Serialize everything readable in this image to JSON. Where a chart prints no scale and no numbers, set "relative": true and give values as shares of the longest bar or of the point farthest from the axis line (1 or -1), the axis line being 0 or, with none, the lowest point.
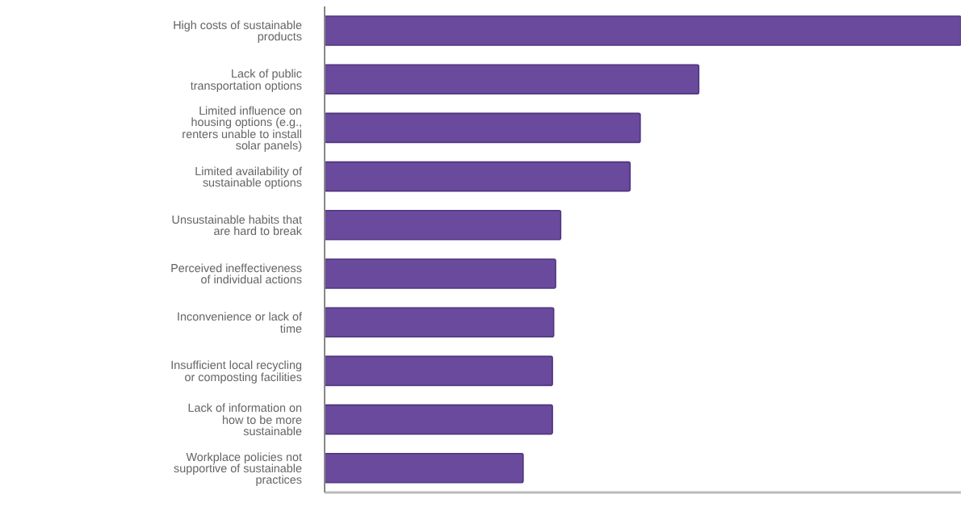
{
  "chart_data": {
    "type": "bar",
    "orientation": "horizontal",
    "relative": true,
    "categories": [
      "High costs of sustainable products",
      "Lack of public transportation options",
      "Limited influence on housing options (e.g., renters unable to install solar panels)",
      "Limited availability of sustainable options",
      "Unsustainable habits that are hard to break",
      "Perceived ineffectiveness of individual actions",
      "Inconvenience or lack of time",
      "Insufficient local recycling or composting facilities",
      "Lack of information on how to be more sustainable",
      "Workplace policies not supportive of sustainable practices"
    ],
    "values": [
      1,
      0.588,
      0.496,
      0.48,
      0.371,
      0.363,
      0.36,
      0.358,
      0.358,
      0.312
    ],
    "color": "#6a4a9c",
    "grid": false,
    "legend": false
  }
}
